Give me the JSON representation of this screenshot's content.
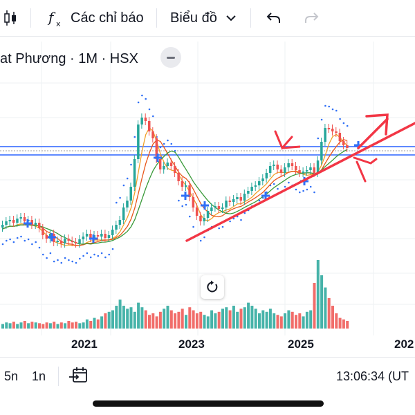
{
  "toolbar": {
    "indicators_label": "Các chỉ báo",
    "chart_type_label": "Biểu đồ"
  },
  "legend": {
    "title": "at Phương · 1M · HSX"
  },
  "axis": {
    "x_labels": [
      "2021",
      "2023",
      "2025",
      "202"
    ]
  },
  "bottom": {
    "timeframes": [
      "5n",
      "1n"
    ],
    "clock": "13:06:34 (UT"
  },
  "colors": {
    "up": "#26a69a",
    "down": "#ef5350",
    "annotation": "#f23645",
    "hline": "#2962ff"
  },
  "icons": {
    "candles": "candlestick-icon",
    "indicators": "fx-icon",
    "chevron": "chevron-down-icon",
    "undo": "undo-icon",
    "redo": "redo-icon",
    "reset": "reset-icon",
    "goto": "goto-date-icon"
  }
}
